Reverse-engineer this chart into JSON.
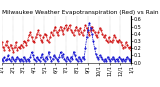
{
  "title": "Milwaukee Weather Evapotranspiration (Red) vs Rain (Blue) per Day (Inches)",
  "background_color": "#ffffff",
  "red_color": "#cc0000",
  "blue_color": "#0000cc",
  "ylim": [
    0.0,
    0.65
  ],
  "xlim": [
    0,
    365
  ],
  "red_data": [
    0.28,
    0.22,
    0.18,
    0.25,
    0.3,
    0.22,
    0.18,
    0.25,
    0.2,
    0.15,
    0.22,
    0.28,
    0.18,
    0.22,
    0.2,
    0.25,
    0.22,
    0.3,
    0.28,
    0.25,
    0.32,
    0.38,
    0.42,
    0.35,
    0.3,
    0.28,
    0.35,
    0.4,
    0.45,
    0.38,
    0.32,
    0.28,
    0.35,
    0.4,
    0.38,
    0.32,
    0.28,
    0.35,
    0.42,
    0.38,
    0.45,
    0.5,
    0.42,
    0.38,
    0.45,
    0.5,
    0.45,
    0.4,
    0.48,
    0.52,
    0.45,
    0.48,
    0.52,
    0.45,
    0.42,
    0.38,
    0.45,
    0.5,
    0.45,
    0.4,
    0.48,
    0.42,
    0.38,
    0.45,
    0.52,
    0.48,
    0.42,
    0.38,
    0.45,
    0.5,
    0.45,
    0.42,
    0.38,
    0.35,
    0.42,
    0.48,
    0.45,
    0.4,
    0.35,
    0.38,
    0.32,
    0.28,
    0.35,
    0.3,
    0.28,
    0.32,
    0.38,
    0.35,
    0.3,
    0.28,
    0.32,
    0.28,
    0.25,
    0.2,
    0.22,
    0.28,
    0.25,
    0.2,
    0.22,
    0.18
  ],
  "blue_data": [
    0.05,
    0.02,
    0.08,
    0.03,
    0.05,
    0.1,
    0.05,
    0.02,
    0.08,
    0.05,
    0.02,
    0.05,
    0.08,
    0.05,
    0.02,
    0.05,
    0.02,
    0.08,
    0.05,
    0.02,
    0.05,
    0.02,
    0.08,
    0.15,
    0.1,
    0.05,
    0.02,
    0.08,
    0.05,
    0.02,
    0.08,
    0.12,
    0.05,
    0.02,
    0.08,
    0.05,
    0.15,
    0.08,
    0.02,
    0.05,
    0.1,
    0.08,
    0.05,
    0.02,
    0.08,
    0.15,
    0.08,
    0.12,
    0.05,
    0.02,
    0.08,
    0.05,
    0.02,
    0.08,
    0.05,
    0.15,
    0.1,
    0.05,
    0.02,
    0.08,
    0.05,
    0.02,
    0.08,
    0.05,
    0.2,
    0.35,
    0.45,
    0.55,
    0.48,
    0.4,
    0.3,
    0.2,
    0.12,
    0.08,
    0.05,
    0.1,
    0.08,
    0.05,
    0.02,
    0.05,
    0.02,
    0.08,
    0.05,
    0.02,
    0.05,
    0.08,
    0.05,
    0.02,
    0.05,
    0.02,
    0.08,
    0.05,
    0.02,
    0.05,
    0.02,
    0.05,
    0.08,
    0.05,
    0.02,
    0.05
  ],
  "x_tick_labels": [
    "1/1",
    "2/1",
    "3/1",
    "4/1",
    "5/1",
    "6/1",
    "7/1",
    "8/1",
    "9/1",
    "10/1",
    "11/1",
    "12/1",
    "1/1"
  ],
  "x_tick_positions": [
    0,
    31,
    59,
    90,
    120,
    151,
    181,
    212,
    243,
    273,
    304,
    334,
    365
  ],
  "grid_color": "#999999",
  "title_fontsize": 4.2,
  "tick_fontsize": 3.5,
  "right_yticks": [
    0.0,
    0.1,
    0.2,
    0.3,
    0.4,
    0.5,
    0.6
  ],
  "right_yticklabels": [
    "0.0",
    "0.1",
    "0.2",
    "0.3",
    "0.4",
    "0.5",
    "0.6"
  ]
}
